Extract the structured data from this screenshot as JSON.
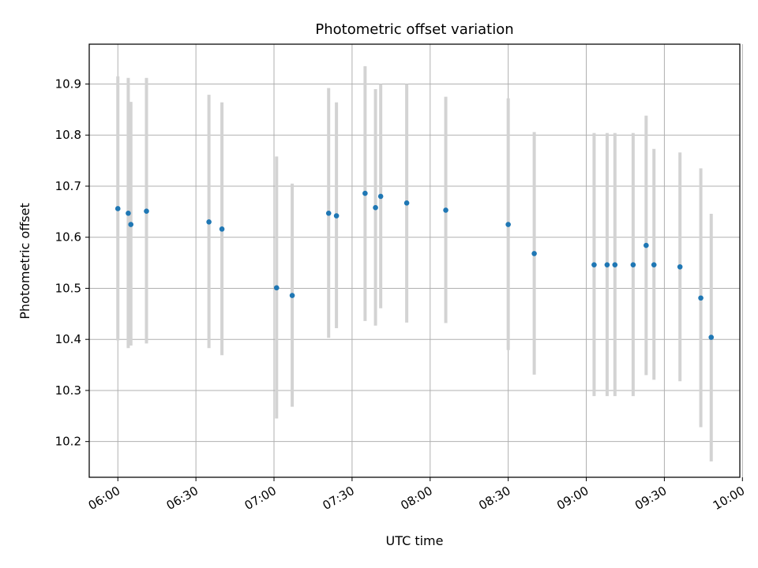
{
  "chart_data": {
    "type": "scatter",
    "title": "Photometric offset variation",
    "xlabel": "UTC time",
    "ylabel": "Photometric offset",
    "x_ticks": [
      "06:00",
      "06:30",
      "07:00",
      "07:30",
      "08:00",
      "08:30",
      "09:00",
      "09:30",
      "10:00"
    ],
    "y_ticks": [
      "10.2",
      "10.3",
      "10.4",
      "10.5",
      "10.6",
      "10.7",
      "10.8",
      "10.9"
    ],
    "xlim": [
      "05:49",
      "09:59"
    ],
    "ylim": [
      10.13,
      10.978
    ],
    "grid": true,
    "colors": {
      "point": "#1f77b4",
      "errorbar": "#d3d3d3",
      "grid": "#b0b0b0"
    },
    "series": [
      {
        "points": [
          {
            "x": "06:00",
            "y": 10.656,
            "low": 10.398,
            "high": 10.915
          },
          {
            "x": "06:04",
            "y": 10.647,
            "low": 10.383,
            "high": 10.912
          },
          {
            "x": "06:05",
            "y": 10.625,
            "low": 10.388,
            "high": 10.865
          },
          {
            "x": "06:11",
            "y": 10.651,
            "low": 10.392,
            "high": 10.912
          },
          {
            "x": "06:35",
            "y": 10.63,
            "low": 10.383,
            "high": 10.879
          },
          {
            "x": "06:40",
            "y": 10.616,
            "low": 10.369,
            "high": 10.864
          },
          {
            "x": "07:01",
            "y": 10.501,
            "low": 10.245,
            "high": 10.758
          },
          {
            "x": "07:07",
            "y": 10.486,
            "low": 10.268,
            "high": 10.705
          },
          {
            "x": "07:21",
            "y": 10.647,
            "low": 10.403,
            "high": 10.892
          },
          {
            "x": "07:24",
            "y": 10.642,
            "low": 10.422,
            "high": 10.864
          },
          {
            "x": "07:35",
            "y": 10.686,
            "low": 10.436,
            "high": 10.935
          },
          {
            "x": "07:39",
            "y": 10.658,
            "low": 10.427,
            "high": 10.89
          },
          {
            "x": "07:41",
            "y": 10.68,
            "low": 10.461,
            "high": 10.9
          },
          {
            "x": "07:51",
            "y": 10.667,
            "low": 10.433,
            "high": 10.9
          },
          {
            "x": "08:06",
            "y": 10.653,
            "low": 10.432,
            "high": 10.875
          },
          {
            "x": "08:30",
            "y": 10.625,
            "low": 10.379,
            "high": 10.872
          },
          {
            "x": "08:40",
            "y": 10.568,
            "low": 10.331,
            "high": 10.806
          },
          {
            "x": "09:03",
            "y": 10.546,
            "low": 10.289,
            "high": 10.804
          },
          {
            "x": "09:08",
            "y": 10.546,
            "low": 10.289,
            "high": 10.804
          },
          {
            "x": "09:11",
            "y": 10.546,
            "low": 10.289,
            "high": 10.804
          },
          {
            "x": "09:18",
            "y": 10.546,
            "low": 10.289,
            "high": 10.804
          },
          {
            "x": "09:23",
            "y": 10.584,
            "low": 10.33,
            "high": 10.838
          },
          {
            "x": "09:26",
            "y": 10.546,
            "low": 10.321,
            "high": 10.773
          },
          {
            "x": "09:36",
            "y": 10.542,
            "low": 10.318,
            "high": 10.766
          },
          {
            "x": "09:44",
            "y": 10.481,
            "low": 10.228,
            "high": 10.735
          },
          {
            "x": "09:48",
            "y": 10.404,
            "low": 10.161,
            "high": 10.646
          }
        ]
      }
    ]
  }
}
